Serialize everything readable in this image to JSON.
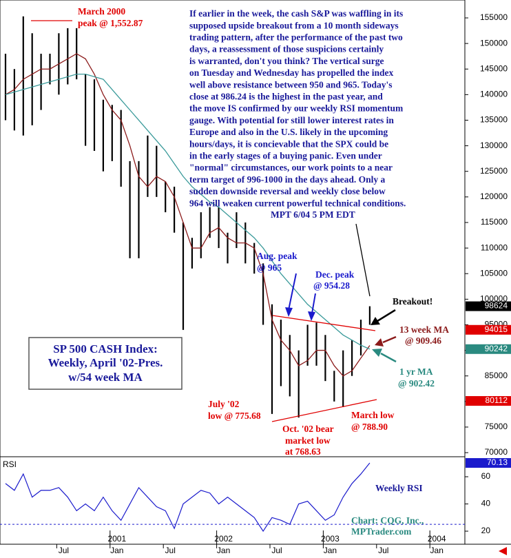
{
  "chart_data": {
    "type": "ohlc",
    "paragraph": [
      "If earlier in the week, the cash S&P was waffling in its",
      "supposed upside breakout from a 10 month sideways",
      "trading pattern, after the performance of the past two",
      "days, a reassessment of those suspicions certainly",
      "is warranted, don't you think? The vertical surge",
      "on Tuesday and Wednesday has propelled the index",
      "well above resistance between 950 and 965. Today's",
      "close at 986.24 is the highest in the past year, and",
      "the move IS confirmed by our weekly RSI momentum",
      "gauge. With potential for still lower interest rates in",
      "Europe and also in the U.S. likely in the upcoming",
      "hours/days, it is concievable that the SPX could be",
      "in the early stages of a buying panic. Even under",
      "\"normal\" circumstances, our work points to a near",
      "term target of 996-1000 in the days ahead. Only a",
      "sudden downside reversal and weekly close below",
      "964 will weaken current powerful technical conditions."
    ],
    "signature": "MPT 6/04 5 PM EDT",
    "title_box": [
      "SP 500 CASH Index:",
      "Weekly, April '02-Pres.",
      "w/54 week MA"
    ],
    "annotations": {
      "march_2000": [
        "March 2000",
        "peak @ 1,552.87"
      ],
      "aug_peak": [
        "Aug. peak",
        "@ 965"
      ],
      "dec_peak": [
        "Dec. peak",
        "@ 954.28"
      ],
      "breakout": "Breakout!",
      "ma13": [
        "13 week MA",
        "@ 909.46"
      ],
      "ma54": [
        "1 yr MA",
        "@ 902.42"
      ],
      "july_low": [
        "July '02",
        "low @ 775.68"
      ],
      "oct_low": [
        "Oct. '02 bear",
        "market low",
        "at 768.63"
      ],
      "march_low": [
        "March low",
        "@ 788.90"
      ]
    },
    "price": {
      "color": "#000",
      "high": [
        148000,
        145000,
        155300,
        152000,
        148000,
        148000,
        152000,
        153000,
        153000,
        144000,
        143000,
        139000,
        138000,
        137000,
        127000,
        127000,
        132000,
        130000,
        123000,
        122000,
        115000,
        112000,
        117000,
        118000,
        118000,
        113000,
        117000,
        115000,
        111000,
        107000,
        99000,
        96000,
        93000,
        90000,
        95000,
        95428,
        93000,
        86000,
        90000,
        92000,
        96000,
        98624
      ],
      "low": [
        135000,
        133000,
        132000,
        134000,
        137000,
        142000,
        140000,
        142000,
        143000,
        130000,
        129000,
        125000,
        127000,
        122000,
        108000,
        108000,
        120000,
        120000,
        117000,
        113000,
        94000,
        106000,
        108000,
        112000,
        110000,
        107000,
        110000,
        107000,
        105000,
        95000,
        77568,
        83000,
        81000,
        76863,
        87000,
        87000,
        84000,
        80000,
        78890,
        85000,
        89000,
        95000
      ]
    },
    "ma_series": [
      {
        "name": "13 week MA",
        "color": "#8b1a1a",
        "values": [
          140000,
          141000,
          143000,
          144000,
          145000,
          145000,
          146000,
          147000,
          148000,
          147000,
          144000,
          140000,
          137000,
          135000,
          130000,
          124000,
          122000,
          124000,
          123000,
          120000,
          115000,
          110000,
          110000,
          113000,
          114000,
          112000,
          111000,
          111000,
          110000,
          105000,
          96000,
          92000,
          90000,
          87000,
          88000,
          90000,
          90000,
          87000,
          85000,
          86000,
          88500,
          90946
        ]
      },
      {
        "name": "1 yr MA",
        "color": "#3a9a9a",
        "values": [
          140000,
          140500,
          141000,
          141500,
          142000,
          142500,
          143000,
          143500,
          144000,
          144000,
          143500,
          143000,
          141000,
          139000,
          137000,
          135000,
          133000,
          131000,
          129000,
          126500,
          124000,
          122000,
          120500,
          119000,
          118000,
          116500,
          115000,
          113500,
          112000,
          110000,
          107500,
          105000,
          103000,
          101000,
          99000,
          97500,
          96000,
          94500,
          93000,
          92000,
          91000,
          90242
        ]
      }
    ],
    "ylim": [
      69200,
      158500
    ],
    "yticks": [
      70000,
      75000,
      80000,
      85000,
      90000,
      95000,
      100000,
      105000,
      110000,
      115000,
      120000,
      125000,
      130000,
      135000,
      140000,
      145000,
      150000,
      155000
    ],
    "price_labels": [
      {
        "value": 98624,
        "color": "#000000"
      },
      {
        "value": 94015,
        "color": "#e00000"
      },
      {
        "value": 90242,
        "color": "#2a8a80"
      },
      {
        "value": 80112,
        "color": "#e00000"
      }
    ],
    "rsi": {
      "label": "RSI",
      "name": "Weekly RSI",
      "color": "#1a1acc",
      "values": [
        55,
        50,
        62,
        45,
        50,
        50,
        52,
        45,
        35,
        40,
        35,
        45,
        35,
        28,
        40,
        52,
        45,
        38,
        35,
        22,
        40,
        45,
        50,
        48,
        40,
        45,
        40,
        35,
        30,
        20,
        30,
        28,
        25,
        40,
        42,
        35,
        28,
        32,
        45,
        55,
        62,
        70.13
      ],
      "last": 70.13,
      "ylim": [
        10.4,
        74.7
      ],
      "yticks": [
        20,
        40,
        60
      ],
      "ref": 25
    },
    "credit": [
      "Chart: CQG, Inc.,",
      "MPTrader.com"
    ],
    "xticks": [
      "Jul",
      "Jan",
      "Jul",
      "Jan",
      "Jul",
      "Jan",
      "Jul",
      "Jan"
    ],
    "year_labels": [
      "2001",
      "2002",
      "2003",
      "2004"
    ]
  }
}
